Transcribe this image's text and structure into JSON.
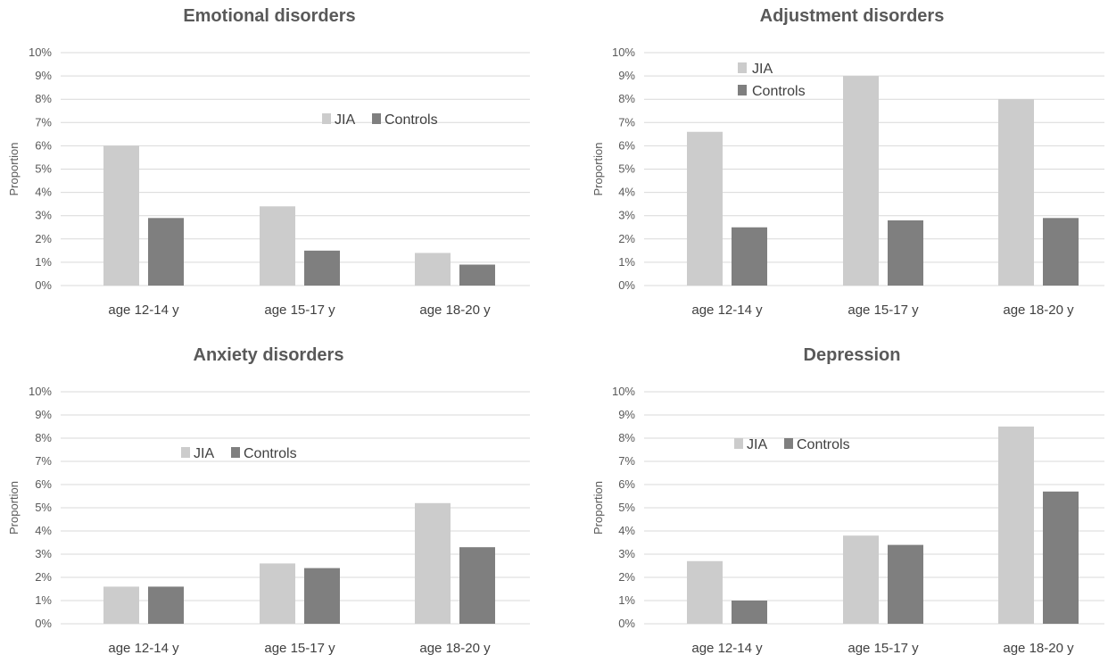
{
  "chart_data": [
    {
      "type": "bar",
      "title": "Emotional disorders",
      "ylabel": "Proportion",
      "categories": [
        "age 12-14 y",
        "age 15-17 y",
        "age 18-20 y"
      ],
      "series": [
        {
          "name": "JIA",
          "values": [
            6.0,
            3.4,
            1.4
          ]
        },
        {
          "name": "Controls",
          "values": [
            2.9,
            1.5,
            0.9
          ]
        }
      ],
      "ylim": [
        0,
        10
      ],
      "yticks": [
        "0%",
        "1%",
        "2%",
        "3%",
        "4%",
        "5%",
        "6%",
        "7%",
        "8%",
        "9%",
        "10%"
      ],
      "legend": "inside, horizontal"
    },
    {
      "type": "bar",
      "title": "Adjustment disorders",
      "ylabel": "Proportion",
      "categories": [
        "age 12-14 y",
        "age 15-17 y",
        "age 18-20 y"
      ],
      "series": [
        {
          "name": "JIA",
          "values": [
            6.6,
            9.0,
            8.0
          ]
        },
        {
          "name": "Controls",
          "values": [
            2.5,
            2.8,
            2.9
          ]
        }
      ],
      "ylim": [
        0,
        10
      ],
      "yticks": [
        "0%",
        "1%",
        "2%",
        "3%",
        "4%",
        "5%",
        "6%",
        "7%",
        "8%",
        "9%",
        "10%"
      ],
      "legend": "inside, vertical"
    },
    {
      "type": "bar",
      "title": "Anxiety disorders",
      "ylabel": "Proportion",
      "categories": [
        "age 12-14 y",
        "age 15-17 y",
        "age 18-20 y"
      ],
      "series": [
        {
          "name": "JIA",
          "values": [
            1.6,
            2.6,
            5.2
          ]
        },
        {
          "name": "Controls",
          "values": [
            1.6,
            2.4,
            3.3
          ]
        }
      ],
      "ylim": [
        0,
        10
      ],
      "yticks": [
        "0%",
        "1%",
        "2%",
        "3%",
        "4%",
        "5%",
        "6%",
        "7%",
        "8%",
        "9%",
        "10%"
      ],
      "legend": "inside, horizontal"
    },
    {
      "type": "bar",
      "title": "Depression",
      "ylabel": "Proportion",
      "categories": [
        "age 12-14 y",
        "age 15-17 y",
        "age 18-20 y"
      ],
      "series": [
        {
          "name": "JIA",
          "values": [
            2.7,
            3.8,
            8.5
          ]
        },
        {
          "name": "Controls",
          "values": [
            1.0,
            3.4,
            5.7
          ]
        }
      ],
      "ylim": [
        0,
        10
      ],
      "yticks": [
        "0%",
        "1%",
        "2%",
        "3%",
        "4%",
        "5%",
        "6%",
        "7%",
        "8%",
        "9%",
        "10%"
      ],
      "legend": "inside, horizontal"
    }
  ],
  "colors": {
    "jia": "#cccccc",
    "controls": "#7f7f7f",
    "grid": "#d9d9d9",
    "text": "#595959"
  }
}
